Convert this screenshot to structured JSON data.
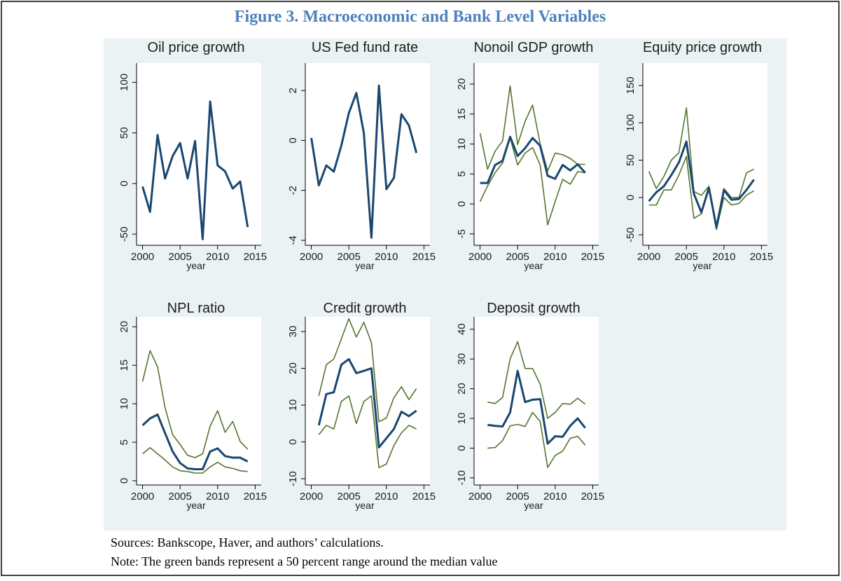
{
  "figure_title": "Figure 3. Macroeconomic and Bank Level Variables",
  "sources": "Sources: Bankscope, Haver, and authors’ calculations.",
  "note": "Note: The green bands represent a 50 percent range around the median value",
  "chart_data": [
    {
      "type": "line",
      "title": "Oil price growth",
      "xlabel": "year",
      "x": [
        2000,
        2001,
        2002,
        2003,
        2004,
        2005,
        2006,
        2007,
        2008,
        2009,
        2010,
        2011,
        2012,
        2013,
        2014
      ],
      "xlim": [
        1999.2,
        2015.8
      ],
      "xticks": [
        2000,
        2005,
        2010,
        2015
      ],
      "ylim": [
        -61,
        119
      ],
      "yticks": [
        -50,
        0,
        50,
        100
      ],
      "series": [
        {
          "color": "#1a476f",
          "values": [
            -3,
            -28,
            48,
            5,
            27,
            40,
            5,
            42,
            -55,
            81,
            18,
            12,
            -5,
            2,
            -43
          ]
        }
      ]
    },
    {
      "type": "line",
      "title": "US Fed fund rate",
      "xlabel": "year",
      "x": [
        2000,
        2001,
        2002,
        2003,
        2004,
        2005,
        2006,
        2007,
        2008,
        2009,
        2010,
        2011,
        2012,
        2013,
        2014
      ],
      "xlim": [
        1999.2,
        2015.8
      ],
      "xticks": [
        2000,
        2005,
        2010,
        2015
      ],
      "ylim": [
        -4.2,
        3.1
      ],
      "yticks": [
        -4,
        -2,
        0,
        2
      ],
      "series": [
        {
          "color": "#1a476f",
          "values": [
            0.1,
            -1.8,
            -1.0,
            -1.25,
            -0.2,
            1.1,
            1.9,
            0.3,
            -3.9,
            2.2,
            -1.95,
            -1.5,
            1.05,
            0.6,
            -0.5
          ]
        }
      ]
    },
    {
      "type": "line",
      "title": "Nonoil GDP growth",
      "xlabel": "year",
      "x": [
        2000,
        2001,
        2002,
        2003,
        2004,
        2005,
        2006,
        2007,
        2008,
        2009,
        2010,
        2011,
        2012,
        2013,
        2014
      ],
      "xlim": [
        1999.2,
        2015.8
      ],
      "xticks": [
        2000,
        2005,
        2010,
        2015
      ],
      "ylim": [
        -6.9,
        23.5
      ],
      "yticks": [
        -5,
        0,
        5,
        10,
        15,
        20
      ],
      "series": [
        {
          "color": "#55752f",
          "values": [
            11.8,
            5.8,
            8.8,
            10.5,
            19.7,
            9.9,
            13.8,
            16.5,
            10,
            5.5,
            8.5,
            8.2,
            7.6,
            6.6,
            6.6
          ]
        },
        {
          "color": "#55752f",
          "values": [
            0.4,
            3,
            5.2,
            6.8,
            11,
            6.5,
            8.5,
            9.4,
            6.5,
            -3.5,
            0.4,
            4.1,
            3.3,
            5.4,
            5.2
          ]
        },
        {
          "color": "#1a476f",
          "values": [
            3.5,
            3.5,
            6.5,
            7.2,
            11.2,
            8,
            9.3,
            11,
            9.7,
            4.7,
            4.2,
            6.5,
            5.6,
            6.6,
            5.2
          ]
        }
      ]
    },
    {
      "type": "line",
      "title": "Equity price growth",
      "xlabel": "year",
      "x": [
        2000,
        2001,
        2002,
        2003,
        2004,
        2005,
        2006,
        2007,
        2008,
        2009,
        2010,
        2011,
        2012,
        2013,
        2014
      ],
      "xlim": [
        1999.2,
        2015.8
      ],
      "xticks": [
        2000,
        2005,
        2010,
        2015
      ],
      "ylim": [
        -64,
        180
      ],
      "yticks": [
        -50,
        0,
        50,
        100,
        150
      ],
      "series": [
        {
          "color": "#55752f",
          "values": [
            35,
            12,
            28,
            50,
            60,
            120,
            8,
            3,
            15,
            -40,
            12,
            0,
            0,
            33,
            38
          ]
        },
        {
          "color": "#55752f",
          "values": [
            -10,
            -10,
            10,
            10,
            30,
            55,
            -28,
            -22,
            13,
            -43,
            0,
            -10,
            -8,
            3,
            9
          ]
        },
        {
          "color": "#1a476f",
          "values": [
            -5,
            7,
            15,
            30,
            47,
            75,
            5,
            -20,
            13,
            -40,
            10,
            -3,
            -2,
            10,
            24
          ]
        }
      ]
    },
    {
      "type": "line",
      "title": "NPL ratio",
      "xlabel": "year",
      "x": [
        2000,
        2001,
        2002,
        2003,
        2004,
        2005,
        2006,
        2007,
        2008,
        2009,
        2010,
        2011,
        2012,
        2013,
        2014
      ],
      "xlim": [
        1999.2,
        2015.8
      ],
      "xticks": [
        2000,
        2005,
        2010,
        2015
      ],
      "ylim": [
        -0.55,
        21.3
      ],
      "yticks": [
        0,
        5,
        10,
        15,
        20
      ],
      "series": [
        {
          "color": "#55752f",
          "values": [
            12.9,
            16.9,
            14.8,
            9.5,
            6,
            4.7,
            3.3,
            3.0,
            3.5,
            7.1,
            9.1,
            6.3,
            7.7,
            5.1,
            4.1
          ]
        },
        {
          "color": "#55752f",
          "values": [
            3.5,
            4.3,
            3.5,
            2.7,
            1.8,
            1.3,
            1.2,
            1.0,
            1.0,
            1.8,
            2.4,
            1.8,
            1.6,
            1.3,
            1.2
          ]
        },
        {
          "color": "#1a476f",
          "values": [
            7.2,
            8.1,
            8.6,
            6.2,
            3.8,
            2.3,
            1.6,
            1.5,
            1.5,
            3.8,
            4.2,
            3.2,
            3.0,
            3.0,
            2.5
          ]
        }
      ]
    },
    {
      "type": "line",
      "title": "Credit growth",
      "xlabel": "year",
      "x": [
        2001,
        2002,
        2003,
        2004,
        2005,
        2006,
        2007,
        2008,
        2009,
        2010,
        2011,
        2012,
        2013,
        2014
      ],
      "xlim": [
        1999.2,
        2015.8
      ],
      "xticks": [
        2000,
        2005,
        2010,
        2015
      ],
      "ylim": [
        -11.7,
        34
      ],
      "yticks": [
        -10,
        0,
        10,
        20,
        30
      ],
      "series": [
        {
          "color": "#55752f",
          "values": [
            12.5,
            21,
            22.5,
            28,
            33.5,
            28.5,
            32.5,
            27,
            5.5,
            6.5,
            12,
            15,
            11.5,
            14.5
          ]
        },
        {
          "color": "#55752f",
          "values": [
            2,
            4.5,
            3.5,
            11,
            12.5,
            5,
            11,
            12.5,
            -7,
            -6,
            -1,
            2.5,
            4.5,
            3.5
          ]
        },
        {
          "color": "#1a476f",
          "values": [
            4.5,
            13,
            13.5,
            21,
            22.5,
            18.7,
            19.3,
            20,
            -1.5,
            1,
            3.5,
            8.2,
            7,
            8.5
          ]
        }
      ]
    },
    {
      "type": "line",
      "title": "Deposit growth",
      "xlabel": "year",
      "x": [
        2001,
        2002,
        2003,
        2004,
        2005,
        2006,
        2007,
        2008,
        2009,
        2010,
        2011,
        2012,
        2013,
        2014
      ],
      "xlim": [
        1999.2,
        2015.8
      ],
      "xticks": [
        2000,
        2005,
        2010,
        2015
      ],
      "ylim": [
        -12.4,
        44.2
      ],
      "yticks": [
        -10,
        0,
        10,
        20,
        30,
        40
      ],
      "series": [
        {
          "color": "#55752f",
          "values": [
            15.5,
            15,
            17,
            30,
            35.8,
            26.8,
            26.8,
            21.5,
            10,
            12,
            15,
            14.8,
            16.8,
            14.8
          ]
        },
        {
          "color": "#55752f",
          "values": [
            0,
            0.2,
            2.5,
            7.5,
            8,
            7.3,
            12,
            9,
            -6.5,
            -2.5,
            -1,
            3.3,
            4,
            1
          ]
        },
        {
          "color": "#1a476f",
          "values": [
            7.8,
            7.5,
            7.3,
            12,
            26,
            15.5,
            16.3,
            16.5,
            1.5,
            4,
            3.8,
            7.5,
            10,
            6.8
          ]
        }
      ]
    }
  ]
}
